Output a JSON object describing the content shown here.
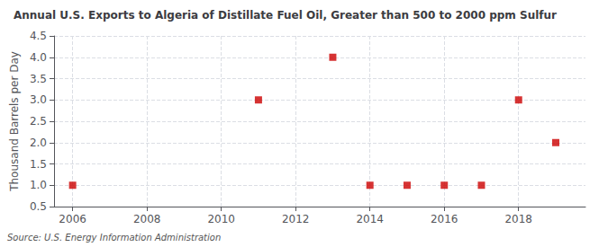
{
  "chart_data": {
    "type": "scatter",
    "title": "Annual U.S. Exports to Algeria of Distillate Fuel Oil, Greater than 500 to 2000 ppm Sulfur",
    "ylabel": "Thousand Barrels per Day",
    "annotation": "Source: U.S. Energy Information Administration",
    "x": [
      2006,
      2011,
      2013,
      2014,
      2015,
      2016,
      2017,
      2018,
      2019
    ],
    "values": [
      1.0,
      3.0,
      4.0,
      1.0,
      1.0,
      1.0,
      1.0,
      3.0,
      2.0
    ],
    "color": "#cc0000",
    "marker": "square",
    "xlim": [
      2005.5,
      2019.8
    ],
    "ylim": [
      0.5,
      4.5
    ],
    "xticks": [
      2006,
      2008,
      2010,
      2012,
      2014,
      2016,
      2018
    ],
    "yticks": [
      0.5,
      {
        "value": 1,
        "label": "1.0"
      },
      1.5,
      {
        "value": 2,
        "label": "2.0"
      },
      2.5,
      {
        "value": 3,
        "label": "3.0"
      },
      3.5,
      {
        "value": 4,
        "label": "4.0"
      },
      4.5
    ],
    "grid": true
  }
}
